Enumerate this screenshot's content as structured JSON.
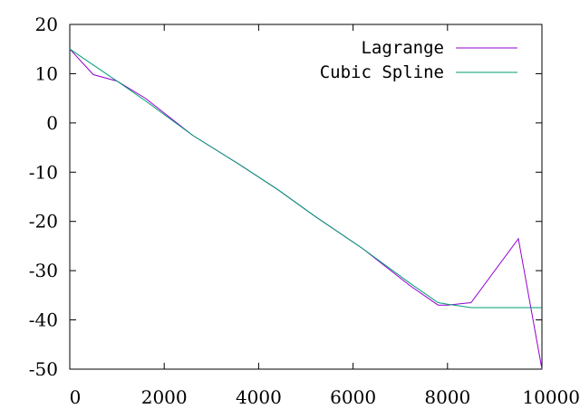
{
  "chart_data": {
    "type": "line",
    "title": "",
    "xlabel": "",
    "ylabel": "",
    "xlim": [
      0,
      10000
    ],
    "ylim": [
      -50,
      20
    ],
    "grid": false,
    "legend_position": "top-right",
    "x_ticks": [
      "0",
      "2000",
      "4000",
      "6000",
      "8000",
      "10000"
    ],
    "y_ticks": [
      "20",
      "10",
      "0",
      "-10",
      "-20",
      "-30",
      "-40",
      "-50"
    ],
    "series": [
      {
        "name": "Lagrange",
        "color": "#9400d3",
        "x": [
          0,
          500,
          1000,
          1600,
          2600,
          3600,
          4400,
          5200,
          6200,
          7200,
          7800,
          8000,
          8500,
          9500,
          10000
        ],
        "y": [
          15,
          9.8,
          8.5,
          5,
          -2.5,
          -8.5,
          -13.5,
          -19,
          -25.5,
          -33,
          -37,
          -37,
          -36.5,
          -23.5,
          -50
        ]
      },
      {
        "name": "Cubic Spline",
        "color": "#009e73",
        "x": [
          0,
          1000,
          1600,
          2600,
          3600,
          4400,
          5200,
          6200,
          7200,
          7800,
          8000,
          8500,
          9000,
          9500,
          10000
        ],
        "y": [
          15,
          8.5,
          4.5,
          -2.5,
          -8.5,
          -13.5,
          -19,
          -25.5,
          -32.5,
          -36.5,
          -36.8,
          -37.5,
          -37.5,
          -37.5,
          -37.5
        ]
      }
    ]
  }
}
